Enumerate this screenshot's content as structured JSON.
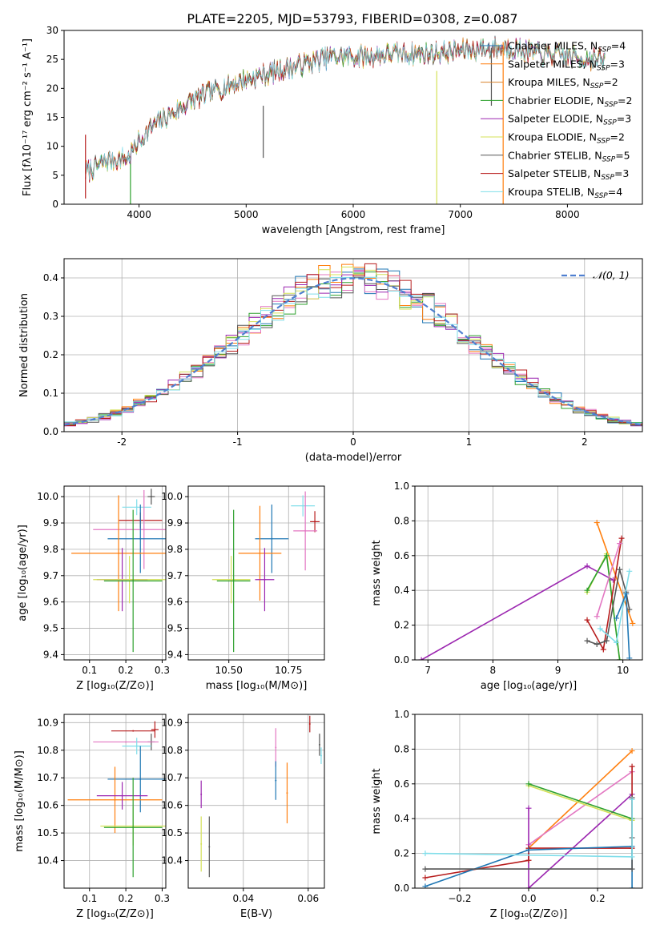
{
  "figure": {
    "title": "PLATE=2205, MJD=53793, FIBERID=0308, z=0.087"
  },
  "colors": {
    "chabrier_miles": "#1f77b4",
    "salpeter_miles": "#ff7f0e",
    "kroupa_miles": "#d9822b",
    "chabrier_elodie": "#2ca02c",
    "salpeter_elodie": "#9c27b0",
    "kroupa_elodie": "#d4e157",
    "chabrier_stelib": "#555555",
    "salpeter_stelib": "#b71c1c",
    "kroupa_stelib": "#80deea",
    "gaussian": "#4f7fd0",
    "grid": "#b0b0b0"
  },
  "chart_data": [
    {
      "id": "spectrum",
      "type": "line",
      "xlabel": "wavelength [Angstrom, rest frame]",
      "ylabel": "Flux [fλ10⁻¹⁷ erg cm⁻² s⁻¹ A⁻¹]",
      "xlim": [
        3300,
        8700
      ],
      "ylim": [
        0,
        30
      ],
      "xticks": [
        4000,
        5000,
        6000,
        7000,
        8000
      ],
      "yticks": [
        0,
        5,
        10,
        15,
        20,
        25,
        30
      ],
      "grid": false,
      "legend": "right",
      "legend_entries": [
        {
          "label": "Chabrier MILES, N",
          "sub": "SSP",
          "suffix": "=4",
          "color": "#1f77b4"
        },
        {
          "label": "Salpeter MILES, N",
          "sub": "SSP",
          "suffix": "=3",
          "color": "#ff7f0e"
        },
        {
          "label": "Kroupa MILES, N",
          "sub": "SSP",
          "suffix": "=2",
          "color": "#d9822b"
        },
        {
          "label": "Chabrier ELODIE, N",
          "sub": "SSP",
          "suffix": "=2",
          "color": "#2ca02c"
        },
        {
          "label": "Salpeter ELODIE, N",
          "sub": "SSP",
          "suffix": "=3",
          "color": "#9c27b0"
        },
        {
          "label": "Kroupa ELODIE, N",
          "sub": "SSP",
          "suffix": "=2",
          "color": "#d4e157"
        },
        {
          "label": "Chabrier STELIB, N",
          "sub": "SSP",
          "suffix": "=5",
          "color": "#555555"
        },
        {
          "label": "Salpeter STELIB, N",
          "sub": "SSP",
          "suffix": "=3",
          "color": "#b71c1c"
        },
        {
          "label": "Kroupa STELIB, N",
          "sub": "SSP",
          "suffix": "=4",
          "color": "#80deea"
        }
      ],
      "trend": {
        "x": [
          3500,
          3700,
          3900,
          4000,
          4100,
          4300,
          4500,
          4700,
          4900,
          5100,
          5300,
          5500,
          5800,
          6100,
          6400,
          6700,
          7000,
          7300,
          7500,
          7700,
          8000,
          8300
        ],
        "y": [
          5.5,
          7.5,
          8.0,
          11.0,
          13.0,
          15.5,
          18.0,
          19.5,
          21.0,
          22.0,
          23.0,
          24.0,
          25.5,
          25.5,
          26.0,
          26.0,
          26.5,
          27.0,
          27.0,
          26.0,
          25.5,
          25.0
        ]
      },
      "vertical_spikes": [
        {
          "x": 3500,
          "y0": 1,
          "y1": 12,
          "color": "#b71c1c"
        },
        {
          "x": 3920,
          "y0": 0,
          "y1": 7,
          "color": "#2ca02c"
        },
        {
          "x": 5160,
          "y0": 8,
          "y1": 17,
          "color": "#555555"
        },
        {
          "x": 6780,
          "y0": 0,
          "y1": 23,
          "color": "#d4e157"
        },
        {
          "x": 7290,
          "y0": 17,
          "y1": 27,
          "color": "#555555"
        },
        {
          "x": 7400,
          "y0": 0,
          "y1": 28,
          "color": "#ff7f0e"
        }
      ]
    },
    {
      "id": "residuals",
      "type": "histogram",
      "xlabel": "(data-model)/error",
      "ylabel": "Normed distribution",
      "xlim": [
        -2.5,
        2.5
      ],
      "ylim": [
        0,
        0.45
      ],
      "xticks": [
        -2,
        -1,
        0,
        1,
        2
      ],
      "yticks": [
        0.0,
        0.1,
        0.2,
        0.3,
        0.4
      ],
      "grid": true,
      "legend": "top-right",
      "legend_label": "𝒩(0, 1)",
      "bin_width": 0.1,
      "series_colors": [
        "#1f77b4",
        "#ff7f0e",
        "#e377c2",
        "#2ca02c",
        "#9c27b0",
        "#d4e157",
        "#555555",
        "#b71c1c",
        "#80deea"
      ]
    },
    {
      "id": "age_vs_z",
      "type": "errorbar",
      "xlabel": "Z [log₁₀(Z/Z⊙)]",
      "ylabel": "age  [log₁₀(age/yr)]",
      "xlim": [
        0.03,
        0.31
      ],
      "ylim": [
        9.38,
        10.04
      ],
      "xticks": [
        0.1,
        0.2,
        0.3
      ],
      "yticks": [
        9.4,
        9.5,
        9.6,
        9.7,
        9.8,
        9.9,
        10.0
      ],
      "grid": true,
      "points": [
        {
          "x": 0.27,
          "y": 10.0,
          "xerr": 0.01,
          "yerr": 0.03,
          "color": "#555555"
        },
        {
          "x": 0.23,
          "y": 9.96,
          "xerr": 0.04,
          "yerr": 0.03,
          "color": "#80deea"
        },
        {
          "x": 0.24,
          "y": 9.91,
          "xerr": 0.06,
          "yerr": 0.03,
          "color": "#b71c1c"
        },
        {
          "x": 0.25,
          "y": 9.875,
          "xerr": 0.14,
          "yerr": 0.15,
          "color": "#e377c2"
        },
        {
          "x": 0.24,
          "y": 9.84,
          "xerr": 0.09,
          "yerr": 0.13,
          "color": "#1f77b4"
        },
        {
          "x": 0.18,
          "y": 9.785,
          "xerr": 0.13,
          "yerr": 0.22,
          "color": "#ff7f0e"
        },
        {
          "x": 0.19,
          "y": 9.685,
          "xerr": 0.07,
          "yerr": 0.12,
          "color": "#9c27b0"
        },
        {
          "x": 0.21,
          "y": 9.685,
          "xerr": 0.1,
          "yerr": 0.09,
          "color": "#d4e157"
        },
        {
          "x": 0.22,
          "y": 9.68,
          "xerr": 0.08,
          "yerr": 0.27,
          "color": "#2ca02c"
        }
      ]
    },
    {
      "id": "age_vs_mass",
      "type": "errorbar",
      "xlabel": "mass [log₁₀(M/M⊙)]",
      "ylabel": "",
      "xlim": [
        0.33,
        0.9
      ],
      "ylim": [
        9.38,
        10.04
      ],
      "xticks": [
        0.5,
        0.75
      ],
      "xticklabels": [
        "10.50",
        "10.75"
      ],
      "yticks": [
        9.4,
        9.5,
        9.6,
        9.7,
        9.8,
        9.9,
        10.0
      ],
      "grid": true,
      "points": [
        {
          "x": 0.86,
          "y": 9.905,
          "xerr": 0.02,
          "yerr": 0.04,
          "color": "#b71c1c"
        },
        {
          "x": 0.81,
          "y": 9.965,
          "xerr": 0.05,
          "yerr": 0.04,
          "color": "#80deea"
        },
        {
          "x": 0.82,
          "y": 9.87,
          "xerr": 0.05,
          "yerr": 0.15,
          "color": "#e377c2"
        },
        {
          "x": 0.68,
          "y": 9.84,
          "xerr": 0.07,
          "yerr": 0.13,
          "color": "#1f77b4"
        },
        {
          "x": 0.63,
          "y": 9.785,
          "xerr": 0.09,
          "yerr": 0.18,
          "color": "#ff7f0e"
        },
        {
          "x": 0.65,
          "y": 9.685,
          "xerr": 0.04,
          "yerr": 0.12,
          "color": "#9c27b0"
        },
        {
          "x": 0.51,
          "y": 9.685,
          "xerr": 0.08,
          "yerr": 0.09,
          "color": "#d4e157"
        },
        {
          "x": 0.52,
          "y": 9.68,
          "xerr": 0.07,
          "yerr": 0.27,
          "color": "#2ca02c"
        }
      ]
    },
    {
      "id": "weight_vs_age",
      "type": "line",
      "xlabel": "age  [log₁₀(age/yr)]",
      "ylabel": "mass weight",
      "xlim": [
        6.8,
        10.3
      ],
      "ylim": [
        0,
        1
      ],
      "xticks": [
        7,
        8,
        9,
        10
      ],
      "yticks": [
        0.0,
        0.2,
        0.4,
        0.6,
        0.8,
        1.0
      ],
      "grid": true,
      "series": [
        {
          "color": "#9c27b0",
          "x": [
            6.9,
            9.45,
            9.85
          ],
          "y": [
            0.0,
            0.54,
            0.46
          ]
        },
        {
          "color": "#ff7f0e",
          "x": [
            9.6,
            10.15
          ],
          "y": [
            0.79,
            0.21
          ]
        },
        {
          "color": "#d4e157",
          "x": [
            9.45,
            9.75,
            9.95
          ],
          "y": [
            0.39,
            0.61,
            0.0
          ]
        },
        {
          "color": "#2ca02c",
          "x": [
            9.45,
            9.75,
            9.95
          ],
          "y": [
            0.4,
            0.6,
            0.0
          ]
        },
        {
          "color": "#b71c1c",
          "x": [
            9.45,
            9.7,
            9.98
          ],
          "y": [
            0.23,
            0.06,
            0.7
          ]
        },
        {
          "color": "#e377c2",
          "x": [
            9.6,
            9.95
          ],
          "y": [
            0.25,
            0.67
          ]
        },
        {
          "color": "#555555",
          "x": [
            9.45,
            9.6,
            9.75,
            9.95,
            10.05,
            10.1
          ],
          "y": [
            0.11,
            0.09,
            0.11,
            0.52,
            0.39,
            0.29
          ]
        },
        {
          "color": "#80deea",
          "x": [
            9.65,
            9.9,
            10.1
          ],
          "y": [
            0.18,
            0.1,
            0.51
          ]
        },
        {
          "color": "#1f77b4",
          "x": [
            9.9,
            10.05,
            10.1
          ],
          "y": [
            0.24,
            0.38,
            0.01
          ]
        }
      ]
    },
    {
      "id": "mass_vs_z",
      "type": "errorbar",
      "xlabel": "Z [log₁₀(Z/Z⊙)]",
      "ylabel": "mass [log₁₀(M/M⊙)]",
      "xlim": [
        0.03,
        0.31
      ],
      "ylim": [
        10.3,
        10.93
      ],
      "xticks": [
        0.1,
        0.2,
        0.3
      ],
      "yticks": [
        10.4,
        10.5,
        10.6,
        10.7,
        10.8,
        10.9
      ],
      "grid": true,
      "points": [
        {
          "x": 0.28,
          "y": 10.875,
          "xerr": 0.01,
          "yerr": 0.03,
          "color": "#b71c1c"
        },
        {
          "x": 0.27,
          "y": 10.83,
          "xerr": 0.01,
          "yerr": 0.03,
          "color": "#555555"
        },
        {
          "x": 0.22,
          "y": 10.87,
          "xerr": 0.06,
          "yerr": 0.0,
          "color": "#b71c1c"
        },
        {
          "x": 0.2,
          "y": 10.83,
          "xerr": 0.09,
          "yerr": 0.0,
          "color": "#e377c2"
        },
        {
          "x": 0.23,
          "y": 10.815,
          "xerr": 0.04,
          "yerr": 0.03,
          "color": "#80deea"
        },
        {
          "x": 0.24,
          "y": 10.695,
          "xerr": 0.09,
          "yerr": 0.12,
          "color": "#1f77b4"
        },
        {
          "x": 0.17,
          "y": 10.62,
          "xerr": 0.13,
          "yerr": 0.12,
          "color": "#ff7f0e"
        },
        {
          "x": 0.19,
          "y": 10.635,
          "xerr": 0.07,
          "yerr": 0.05,
          "color": "#9c27b0"
        },
        {
          "x": 0.22,
          "y": 10.525,
          "xerr": 0.09,
          "yerr": 0.07,
          "color": "#d4e157"
        },
        {
          "x": 0.22,
          "y": 10.52,
          "xerr": 0.08,
          "yerr": 0.18,
          "color": "#2ca02c"
        }
      ]
    },
    {
      "id": "mass_vs_ebv",
      "type": "errorbar",
      "xlabel": "E(B-V)",
      "ylabel": "",
      "xlim": [
        0.023,
        0.065
      ],
      "ylim": [
        10.3,
        10.93
      ],
      "xticks": [
        0.04,
        0.06
      ],
      "xticklabels": [
        "0.04",
        "0.06"
      ],
      "yticks": [
        10.4,
        10.5,
        10.6,
        10.7,
        10.8,
        10.9
      ],
      "grid": true,
      "points": [
        {
          "x": 0.0605,
          "y": 10.895,
          "xerr": 0,
          "yerr": 0.03,
          "color": "#b71c1c"
        },
        {
          "x": 0.0635,
          "y": 10.82,
          "xerr": 0,
          "yerr": 0.04,
          "color": "#555555"
        },
        {
          "x": 0.064,
          "y": 10.78,
          "xerr": 0,
          "yerr": 0.03,
          "color": "#80deea"
        },
        {
          "x": 0.05,
          "y": 10.81,
          "xerr": 0,
          "yerr": 0.07,
          "color": "#e377c2"
        },
        {
          "x": 0.05,
          "y": 10.69,
          "xerr": 0,
          "yerr": 0.07,
          "color": "#1f77b4"
        },
        {
          "x": 0.0535,
          "y": 10.645,
          "xerr": 0,
          "yerr": 0.11,
          "color": "#ff7f0e"
        },
        {
          "x": 0.027,
          "y": 10.64,
          "xerr": 0,
          "yerr": 0.05,
          "color": "#9c27b0"
        },
        {
          "x": 0.027,
          "y": 10.46,
          "xerr": 0,
          "yerr": 0.1,
          "color": "#d4e157"
        },
        {
          "x": 0.0295,
          "y": 10.45,
          "xerr": 0,
          "yerr": 0.11,
          "color": "#555555"
        }
      ]
    },
    {
      "id": "weight_vs_z",
      "type": "line",
      "xlabel": "Z [log₁₀(Z/Z⊙)]",
      "ylabel": "mass weight",
      "xlim": [
        -0.33,
        0.33
      ],
      "ylim": [
        0,
        1
      ],
      "xticks": [
        -0.2,
        0.0,
        0.2
      ],
      "xticklabels": [
        "−0.2",
        "0.0",
        "0.2"
      ],
      "yticks": [
        0.0,
        0.2,
        0.4,
        0.6,
        0.8,
        1.0
      ],
      "grid": true,
      "series": [
        {
          "color": "#ff7f0e",
          "x": [
            0.0,
            0.3
          ],
          "y": [
            0.23,
            0.79
          ]
        },
        {
          "color": "#e377c2",
          "x": [
            0.0,
            0.3
          ],
          "y": [
            0.25,
            0.67
          ]
        },
        {
          "color": "#9c27b0",
          "x": [
            0.0,
            0.0,
            0.3
          ],
          "y": [
            0.46,
            0.0,
            0.54
          ]
        },
        {
          "color": "#d4e157",
          "x": [
            0.0,
            0.3
          ],
          "y": [
            0.59,
            0.39
          ]
        },
        {
          "color": "#2ca02c",
          "x": [
            0.0,
            0.3
          ],
          "y": [
            0.6,
            0.4
          ]
        },
        {
          "color": "#b71c1c",
          "x": [
            -0.3,
            0.0,
            0.0,
            0.3,
            0.3
          ],
          "y": [
            0.06,
            0.16,
            0.23,
            0.23,
            0.7
          ]
        },
        {
          "color": "#1f77b4",
          "x": [
            -0.3,
            0.0,
            0.3,
            0.3
          ],
          "y": [
            0.01,
            0.22,
            0.24,
            0.0
          ]
        },
        {
          "color": "#555555",
          "x": [
            -0.3,
            0.3,
            0.3,
            0.3
          ],
          "y": [
            0.11,
            0.11,
            0.29,
            0.52
          ]
        },
        {
          "color": "#80deea",
          "x": [
            -0.3,
            0.3,
            0.3
          ],
          "y": [
            0.2,
            0.18,
            0.51
          ]
        }
      ]
    }
  ]
}
